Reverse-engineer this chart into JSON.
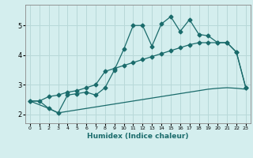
{
  "xlabel": "Humidex (Indice chaleur)",
  "bg_color": "#d4eeee",
  "grid_color": "#b8d8d8",
  "line_color": "#1a6b6b",
  "xlim": [
    -0.5,
    23.5
  ],
  "ylim": [
    1.7,
    5.7
  ],
  "xticks": [
    0,
    1,
    2,
    3,
    4,
    5,
    6,
    7,
    8,
    9,
    10,
    11,
    12,
    13,
    14,
    15,
    16,
    17,
    18,
    19,
    20,
    21,
    22,
    23
  ],
  "yticks": [
    2,
    3,
    4,
    5
  ],
  "line1_x": [
    0,
    1,
    2,
    3,
    4,
    5,
    6,
    7,
    8,
    9,
    10,
    11,
    12,
    13,
    14,
    15,
    16,
    17,
    18,
    19,
    20,
    21,
    22,
    23
  ],
  "line1_y": [
    2.45,
    2.45,
    2.2,
    2.05,
    2.1,
    2.15,
    2.2,
    2.25,
    2.3,
    2.35,
    2.4,
    2.45,
    2.5,
    2.55,
    2.6,
    2.65,
    2.7,
    2.75,
    2.8,
    2.85,
    2.88,
    2.9,
    2.88,
    2.85
  ],
  "line2_x": [
    0,
    1,
    2,
    3,
    4,
    5,
    6,
    7,
    8,
    9,
    10,
    11,
    12,
    13,
    14,
    15,
    16,
    17,
    18,
    19,
    20,
    21,
    22,
    23
  ],
  "line2_y": [
    2.45,
    2.45,
    2.6,
    2.65,
    2.75,
    2.8,
    2.9,
    3.0,
    3.45,
    3.55,
    3.65,
    3.75,
    3.85,
    3.95,
    4.05,
    4.15,
    4.25,
    4.35,
    4.42,
    4.42,
    4.42,
    4.42,
    4.1,
    2.9
  ],
  "line3_x": [
    0,
    2,
    3,
    4,
    5,
    6,
    7,
    8,
    9,
    10,
    11,
    12,
    13,
    14,
    15,
    16,
    17,
    18,
    19,
    20,
    21,
    22,
    23
  ],
  "line3_y": [
    2.45,
    2.2,
    2.05,
    2.65,
    2.7,
    2.75,
    2.65,
    2.9,
    3.5,
    4.2,
    5.0,
    5.0,
    4.3,
    5.05,
    5.3,
    4.8,
    5.2,
    4.7,
    4.65,
    4.42,
    4.42,
    4.1,
    2.9
  ],
  "marker": "D",
  "markersize": 2.5,
  "linewidth": 0.9
}
